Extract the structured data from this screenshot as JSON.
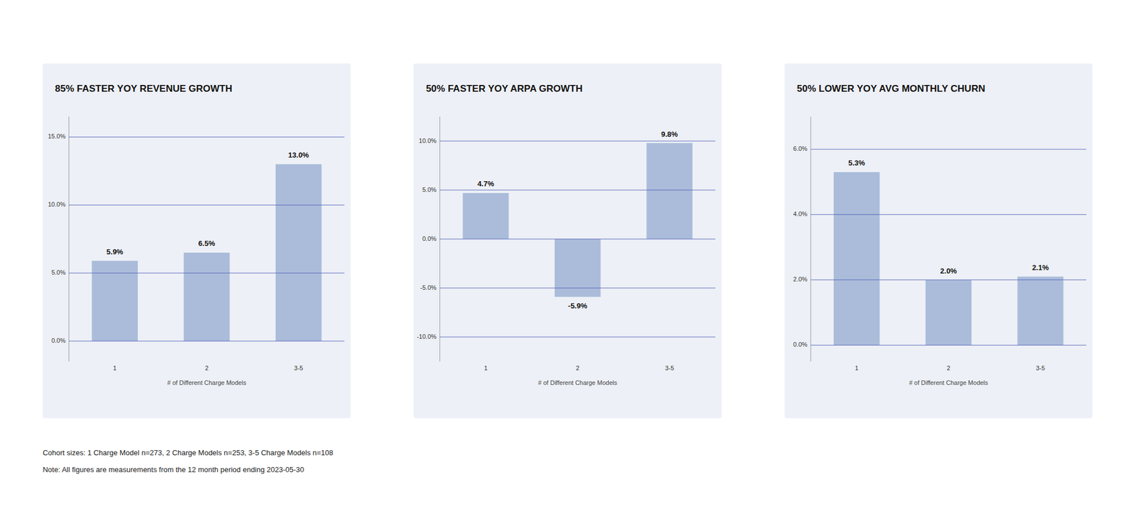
{
  "chart_data": [
    {
      "type": "bar",
      "title": "85% FASTER YOY REVENUE GROWTH",
      "xlabel": "# of Different Charge Models",
      "categories": [
        "1",
        "2",
        "3-5"
      ],
      "values": [
        5.9,
        6.5,
        13.0
      ],
      "value_labels": [
        "5.9%",
        "6.5%",
        "13.0%"
      ],
      "data_labels": true,
      "color": "#aabcda",
      "grid": true,
      "ylim": [
        -1.5,
        16.5
      ],
      "yticks": [
        {
          "value": 0.0,
          "label": "0.0%"
        },
        {
          "value": 5.0,
          "label": "5.0%"
        },
        {
          "value": 10.0,
          "label": "10.0%"
        },
        {
          "value": 15.0,
          "label": "15.0%"
        }
      ],
      "annotations": [
        "Cohort sizes: 1 Charge Model n=273, 2 Charge Models n=253, 3-5 Charge Models n=108",
        "Note: All figures are measurements from the 12 month period ending 2023-05-30"
      ]
    },
    {
      "type": "bar",
      "title": "50% FASTER YOY ARPA GROWTH",
      "xlabel": "# of Different Charge Models",
      "categories": [
        "1",
        "2",
        "3-5"
      ],
      "values": [
        4.7,
        -5.9,
        9.8
      ],
      "value_labels": [
        "4.7%",
        "-5.9%",
        "9.8%"
      ],
      "data_labels": true,
      "color": "#aabcda",
      "grid": true,
      "ylim": [
        -12.5,
        12.5
      ],
      "yticks": [
        {
          "value": -10.0,
          "label": "-10.0%"
        },
        {
          "value": -5.0,
          "label": "-5.0%"
        },
        {
          "value": 0.0,
          "label": "0.0%"
        },
        {
          "value": 5.0,
          "label": "5.0%"
        },
        {
          "value": 10.0,
          "label": "10.0%"
        }
      ]
    },
    {
      "type": "bar",
      "title": "50% LOWER YOY AVG MONTHLY CHURN",
      "xlabel": "# of Different Charge Models",
      "categories": [
        "1",
        "2",
        "3-5"
      ],
      "values": [
        5.3,
        2.0,
        2.1
      ],
      "value_labels": [
        "5.3%",
        "2.0%",
        "2.1%"
      ],
      "data_labels": true,
      "color": "#aabcda",
      "grid": true,
      "ylim": [
        -0.5,
        7.0
      ],
      "yticks": [
        {
          "value": 0.0,
          "label": "0.0%"
        },
        {
          "value": 2.0,
          "label": "2.0%"
        },
        {
          "value": 4.0,
          "label": "4.0%"
        },
        {
          "value": 6.0,
          "label": "6.0%"
        }
      ]
    }
  ]
}
